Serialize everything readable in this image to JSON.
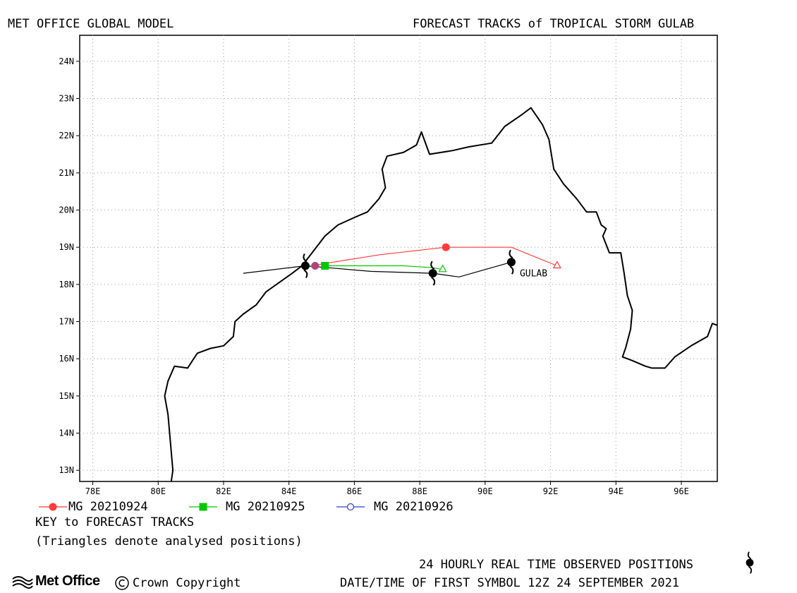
{
  "header": {
    "left": "MET OFFICE GLOBAL MODEL",
    "right": "FORECAST TRACKS of TROPICAL STORM GULAB"
  },
  "map": {
    "lon_range": [
      77.6,
      97.1
    ],
    "lat_range": [
      12.7,
      24.7
    ],
    "lon_ticks": [
      {
        "value": 78,
        "label": "78E"
      },
      {
        "value": 80,
        "label": "80E"
      },
      {
        "value": 82,
        "label": "82E"
      },
      {
        "value": 84,
        "label": "84E"
      },
      {
        "value": 86,
        "label": "86E"
      },
      {
        "value": 88,
        "label": "88E"
      },
      {
        "value": 90,
        "label": "90E"
      },
      {
        "value": 92,
        "label": "92E"
      },
      {
        "value": 94,
        "label": "94E"
      },
      {
        "value": 96,
        "label": "96E"
      }
    ],
    "lat_ticks": [
      {
        "value": 13,
        "label": "13N"
      },
      {
        "value": 14,
        "label": "14N"
      },
      {
        "value": 15,
        "label": "15N"
      },
      {
        "value": 16,
        "label": "16N"
      },
      {
        "value": 17,
        "label": "17N"
      },
      {
        "value": 18,
        "label": "18N"
      },
      {
        "value": 19,
        "label": "19N"
      },
      {
        "value": 20,
        "label": "20N"
      },
      {
        "value": 21,
        "label": "21N"
      },
      {
        "value": 22,
        "label": "22N"
      },
      {
        "value": 23,
        "label": "23N"
      },
      {
        "value": 24,
        "label": "24N"
      }
    ],
    "grid": "dotted",
    "coastline": [
      [
        80.4,
        12.7
      ],
      [
        80.45,
        13.0
      ],
      [
        80.4,
        13.5
      ],
      [
        80.35,
        14.0
      ],
      [
        80.3,
        14.5
      ],
      [
        80.2,
        15.0
      ],
      [
        80.3,
        15.4
      ],
      [
        80.5,
        15.8
      ],
      [
        80.9,
        15.75
      ],
      [
        81.05,
        15.95
      ],
      [
        81.2,
        16.15
      ],
      [
        81.6,
        16.28
      ],
      [
        82.0,
        16.35
      ],
      [
        82.3,
        16.6
      ],
      [
        82.35,
        17.0
      ],
      [
        82.6,
        17.2
      ],
      [
        83.0,
        17.45
      ],
      [
        83.3,
        17.8
      ],
      [
        83.7,
        18.05
      ],
      [
        84.1,
        18.3
      ],
      [
        84.4,
        18.5
      ],
      [
        84.75,
        18.9
      ],
      [
        85.1,
        19.3
      ],
      [
        85.5,
        19.6
      ],
      [
        86.0,
        19.8
      ],
      [
        86.4,
        19.95
      ],
      [
        86.75,
        20.3
      ],
      [
        86.95,
        20.6
      ],
      [
        86.85,
        21.1
      ],
      [
        87.0,
        21.45
      ],
      [
        87.5,
        21.55
      ],
      [
        87.9,
        21.75
      ],
      [
        88.05,
        22.1
      ],
      [
        88.3,
        21.5
      ],
      [
        89.0,
        21.6
      ],
      [
        89.5,
        21.7
      ],
      [
        90.2,
        21.8
      ],
      [
        90.6,
        22.25
      ],
      [
        91.1,
        22.55
      ],
      [
        91.4,
        22.75
      ],
      [
        91.75,
        22.3
      ],
      [
        91.95,
        21.9
      ],
      [
        92.1,
        21.1
      ],
      [
        92.4,
        20.7
      ],
      [
        92.8,
        20.3
      ],
      [
        93.1,
        19.95
      ],
      [
        93.4,
        19.95
      ],
      [
        93.55,
        19.6
      ],
      [
        93.7,
        19.5
      ],
      [
        93.6,
        19.3
      ],
      [
        93.8,
        18.85
      ],
      [
        94.15,
        18.85
      ],
      [
        94.25,
        18.3
      ],
      [
        94.35,
        17.7
      ],
      [
        94.5,
        17.3
      ],
      [
        94.45,
        16.8
      ],
      [
        94.3,
        16.3
      ],
      [
        94.2,
        16.05
      ],
      [
        94.5,
        15.95
      ],
      [
        94.9,
        15.8
      ],
      [
        95.1,
        15.75
      ],
      [
        95.5,
        15.75
      ],
      [
        95.8,
        16.05
      ],
      [
        96.3,
        16.35
      ],
      [
        96.8,
        16.6
      ],
      [
        96.95,
        16.95
      ],
      [
        97.1,
        16.9
      ]
    ],
    "observed_track": [
      [
        82.6,
        18.3
      ],
      [
        84.5,
        18.5
      ],
      [
        85.2,
        18.45
      ],
      [
        86.5,
        18.35
      ],
      [
        88.4,
        18.3
      ],
      [
        89.2,
        18.2
      ],
      [
        90.8,
        18.6
      ]
    ],
    "observed_positions": [
      {
        "lon": 90.8,
        "lat": 18.6
      },
      {
        "lon": 88.4,
        "lat": 18.3
      },
      {
        "lon": 84.5,
        "lat": 18.5
      }
    ],
    "storm_label": "GULAB",
    "forecast_tracks": [
      {
        "name": "MG 20210924",
        "color": "#ff3b3b",
        "marker": "filled-circle",
        "points": [
          [
            92.2,
            18.5
          ],
          [
            90.8,
            19.0
          ],
          [
            88.8,
            19.0
          ],
          [
            86.8,
            18.8
          ],
          [
            85.0,
            18.55
          ],
          [
            84.8,
            18.5
          ]
        ],
        "marker_points": [
          [
            88.8,
            19.0
          ],
          [
            84.8,
            18.5
          ]
        ],
        "analysed_start": [
          92.2,
          18.5
        ]
      },
      {
        "name": "MG 20210925",
        "color": "#00c800",
        "marker": "filled-square",
        "points": [
          [
            88.7,
            18.4
          ],
          [
            88.4,
            18.45
          ],
          [
            87.5,
            18.5
          ],
          [
            86.0,
            18.5
          ],
          [
            85.1,
            18.5
          ]
        ],
        "marker_points": [
          [
            85.1,
            18.5
          ]
        ],
        "analysed_start": [
          88.7,
          18.4
        ]
      },
      {
        "name": "MG 20210926",
        "color": "#2b3fd6",
        "marker": "open-circle",
        "points": [],
        "marker_points": [],
        "analysed_start": null
      }
    ]
  },
  "legend": {
    "title": "KEY to FORECAST TRACKS",
    "note": "(Triangles denote analysed positions)"
  },
  "footer": {
    "observed_caption": "24 HOURLY REAL TIME OBSERVED POSITIONS",
    "first_symbol": "DATE/TIME OF FIRST SYMBOL 12Z 24 SEPTEMBER 2021",
    "logo_text": "Met Office",
    "copyright": "Crown Copyright"
  }
}
